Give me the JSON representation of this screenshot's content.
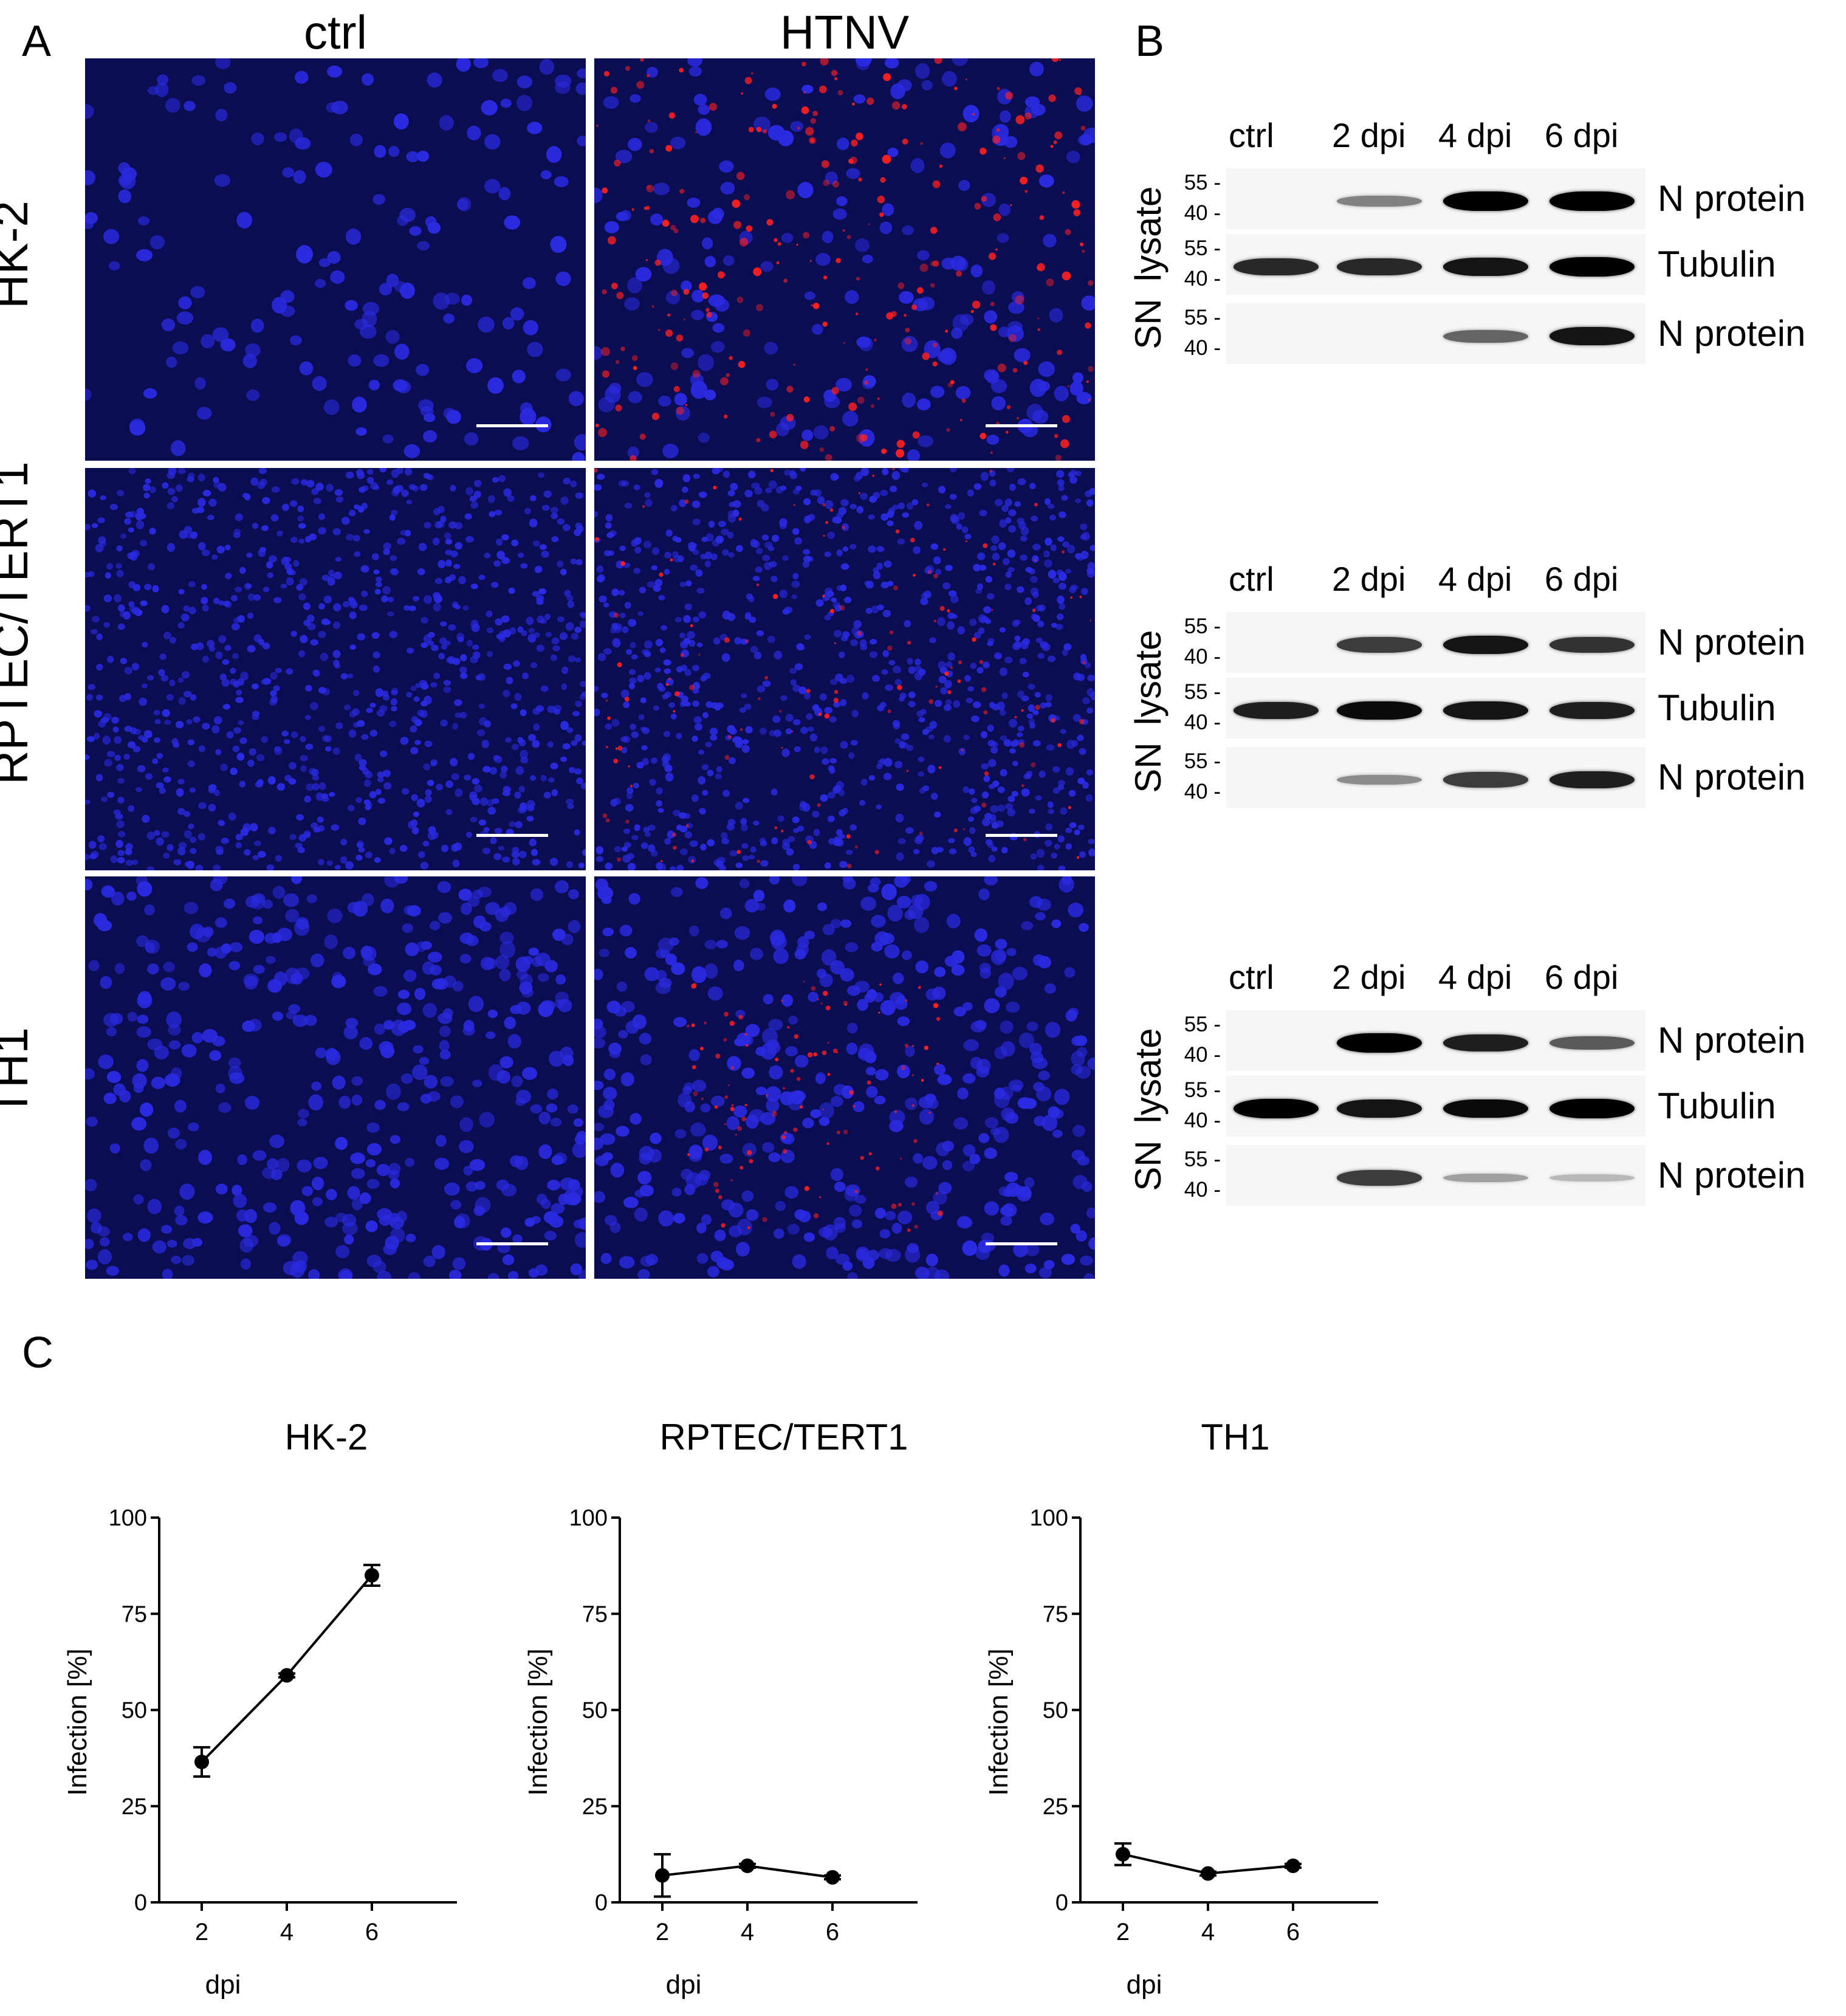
{
  "panels": {
    "a": {
      "letter": "A"
    },
    "b": {
      "letter": "B"
    },
    "c": {
      "letter": "C"
    }
  },
  "microscopy": {
    "columns": [
      "ctrl",
      "HTNV"
    ],
    "rows": [
      "HK-2",
      "RPTEC/TERT1",
      "TH1"
    ],
    "colors": {
      "nuclei": "#2a2ae0",
      "background": "#0b0d52",
      "signal": "#ff2020",
      "scalebar": "#ffffff"
    }
  },
  "western_blots": {
    "lanes": [
      "ctrl",
      "2 dpi",
      "4 dpi",
      "6 dpi"
    ],
    "blocks": [
      {
        "lysate_label": "lysate",
        "sn_label": "SN",
        "strips": [
          {
            "name": "N protein",
            "mw": [
              "55 -",
              "40 -"
            ],
            "intensity": [
              0,
              0.35,
              1.0,
              1.0
            ]
          },
          {
            "name": "Tubulin",
            "mw": [
              "55 -",
              "40 -"
            ],
            "intensity": [
              0.8,
              0.8,
              0.9,
              1.0
            ]
          },
          {
            "name": "N protein",
            "mw": [
              "55 -",
              "40 -"
            ],
            "intensity": [
              0,
              0,
              0.5,
              0.9
            ]
          }
        ]
      },
      {
        "lysate_label": "lysate",
        "sn_label": "SN",
        "strips": [
          {
            "name": "N protein",
            "mw": [
              "55 -",
              "40 -"
            ],
            "intensity": [
              0,
              0.7,
              0.9,
              0.75
            ]
          },
          {
            "name": "Tubulin",
            "mw": [
              "55 -",
              "40 -"
            ],
            "intensity": [
              0.85,
              0.95,
              0.9,
              0.85
            ]
          },
          {
            "name": "N protein",
            "mw": [
              "55 -",
              "40 -"
            ],
            "intensity": [
              0,
              0.3,
              0.7,
              0.85
            ]
          }
        ]
      },
      {
        "lysate_label": "lysate",
        "sn_label": "SN",
        "strips": [
          {
            "name": "N protein",
            "mw": [
              "55 -",
              "40 -"
            ],
            "intensity": [
              0,
              1.0,
              0.85,
              0.55
            ]
          },
          {
            "name": "Tubulin",
            "mw": [
              "55 -",
              "40 -"
            ],
            "intensity": [
              1.0,
              0.9,
              0.95,
              1.0
            ]
          },
          {
            "name": "N protein",
            "mw": [
              "55 -",
              "40 -"
            ],
            "intensity": [
              0,
              0.7,
              0.2,
              0.08
            ]
          }
        ]
      }
    ]
  },
  "chart_data": [
    {
      "type": "line",
      "title": "HK-2",
      "xlabel": "dpi",
      "ylabel": "Infection [%]",
      "x": [
        2,
        4,
        6
      ],
      "y": [
        36.5,
        59,
        85
      ],
      "err": [
        3.8,
        0.5,
        2.7
      ],
      "xticks": [
        "2",
        "4",
        "6"
      ],
      "yticks": [
        "0",
        "25",
        "50",
        "75",
        "100"
      ],
      "ylim": [
        0,
        100
      ],
      "xlim": [
        1,
        8
      ],
      "grid": false
    },
    {
      "type": "line",
      "title": "RPTEC/TERT1",
      "xlabel": "dpi",
      "ylabel": "Infection [%]",
      "x": [
        2,
        4,
        6
      ],
      "y": [
        7,
        9.5,
        6.5
      ],
      "err": [
        5.5,
        0.5,
        0.5
      ],
      "xticks": [
        "2",
        "4",
        "6"
      ],
      "yticks": [
        "0",
        "25",
        "50",
        "75",
        "100"
      ],
      "ylim": [
        0,
        100
      ],
      "xlim": [
        1,
        8
      ],
      "grid": false
    },
    {
      "type": "line",
      "title": "TH1",
      "xlabel": "dpi",
      "ylabel": "Infection [%]",
      "x": [
        2,
        4,
        6
      ],
      "y": [
        12.5,
        7.5,
        9.5
      ],
      "err": [
        2.8,
        0.5,
        0.5
      ],
      "xticks": [
        "2",
        "4",
        "6"
      ],
      "yticks": [
        "0",
        "25",
        "50",
        "75",
        "100"
      ],
      "ylim": [
        0,
        100
      ],
      "xlim": [
        1,
        8
      ],
      "grid": false
    }
  ]
}
